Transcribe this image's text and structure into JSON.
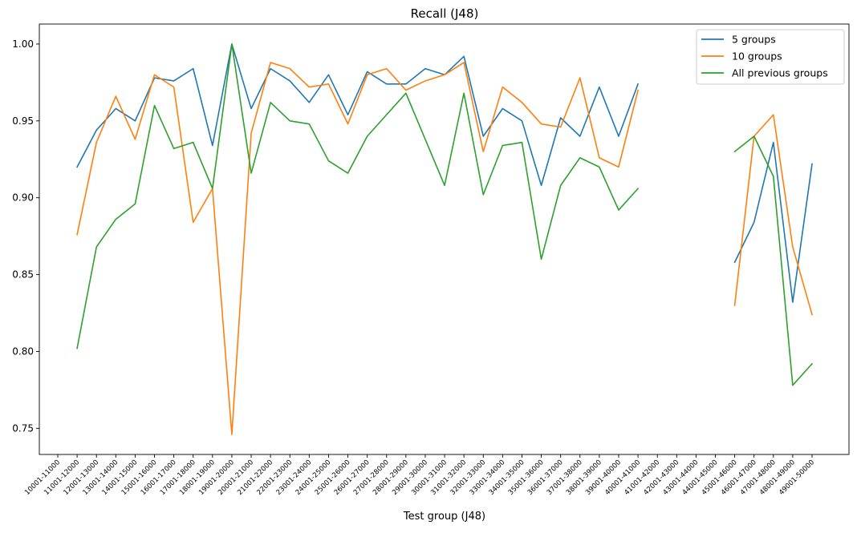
{
  "chart_data": {
    "type": "line",
    "title": "Recall (J48)",
    "xlabel": "Test group (J48)",
    "ylabel": "",
    "ylim": [
      0.733,
      1.013
    ],
    "yticks": [
      0.75,
      0.8,
      0.85,
      0.9,
      0.95,
      1.0
    ],
    "ytick_labels": [
      "0.75",
      "0.80",
      "0.85",
      "0.90",
      "0.95",
      "1.00"
    ],
    "categories": [
      "10001-11000",
      "11001-12000",
      "12001-13000",
      "13001-14000",
      "14001-15000",
      "15001-16000",
      "16001-17000",
      "17001-18000",
      "18001-19000",
      "19001-20000",
      "20001-21000",
      "21001-22000",
      "22001-23000",
      "23001-24000",
      "24001-25000",
      "25001-26000",
      "26001-27000",
      "27001-28000",
      "28001-29000",
      "29001-30000",
      "30001-31000",
      "31001-32000",
      "32001-33000",
      "33001-34000",
      "34001-35000",
      "35001-36000",
      "36001-37000",
      "37001-38000",
      "38001-39000",
      "39001-40000",
      "40001-41000",
      "41001-42000",
      "42001-43000",
      "43001-44000",
      "44001-45000",
      "45001-46000",
      "46001-47000",
      "47001-48000",
      "48001-49000",
      "49001-50000"
    ],
    "legend_position": "top-right",
    "grid": false,
    "series": [
      {
        "name": "5 groups",
        "color": "#1f77b4",
        "values": [
          null,
          0.92,
          0.944,
          0.958,
          0.95,
          0.978,
          0.976,
          0.984,
          0.934,
          1.0,
          0.958,
          0.984,
          0.976,
          0.962,
          0.98,
          0.954,
          0.982,
          0.974,
          0.974,
          0.984,
          0.98,
          0.992,
          0.94,
          0.958,
          0.95,
          0.908,
          0.952,
          0.94,
          0.972,
          0.94,
          0.974,
          null,
          null,
          null,
          null,
          0.858,
          0.884,
          0.936,
          0.832,
          0.922
        ]
      },
      {
        "name": "10 groups",
        "color": "#ff7f0e",
        "values": [
          null,
          0.876,
          0.936,
          0.966,
          0.938,
          0.98,
          0.972,
          0.884,
          0.906,
          0.746,
          0.942,
          0.988,
          0.984,
          0.972,
          0.974,
          0.948,
          0.98,
          0.984,
          0.97,
          0.976,
          0.98,
          0.988,
          0.93,
          0.972,
          0.962,
          0.948,
          0.946,
          0.978,
          0.926,
          0.92,
          0.97,
          null,
          null,
          null,
          null,
          0.83,
          0.94,
          0.954,
          0.868,
          0.824
        ]
      },
      {
        "name": "All previous groups",
        "color": "#2ca02c",
        "values": [
          null,
          0.802,
          0.868,
          0.886,
          0.896,
          0.96,
          0.932,
          0.936,
          0.906,
          1.0,
          0.916,
          0.962,
          0.95,
          0.948,
          0.924,
          0.916,
          0.94,
          0.954,
          0.968,
          0.938,
          0.908,
          0.968,
          0.902,
          0.934,
          0.936,
          0.86,
          0.908,
          0.926,
          0.92,
          0.892,
          0.906,
          null,
          null,
          null,
          null,
          0.93,
          0.94,
          0.914,
          0.778,
          0.792
        ]
      }
    ]
  }
}
